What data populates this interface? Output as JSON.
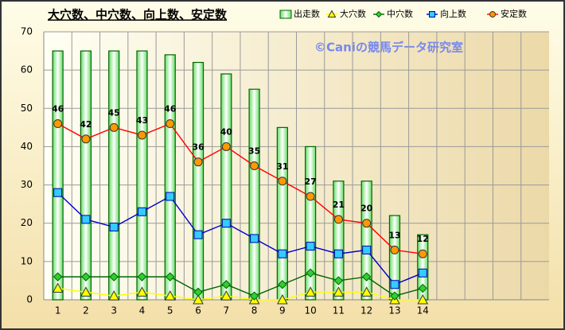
{
  "chart_data": {
    "type": "combo",
    "title": "大穴数、中穴数、向上数、安定数",
    "watermark": "©Caniの競馬データ研究室",
    "categories": [
      1,
      2,
      3,
      4,
      5,
      6,
      7,
      8,
      9,
      10,
      11,
      12,
      13,
      14,
      null,
      null,
      null,
      null
    ],
    "ylim": [
      0,
      70
    ],
    "yticks": [
      0,
      10,
      20,
      30,
      40,
      50,
      60,
      70
    ],
    "grid": true,
    "series": [
      {
        "name": "出走数",
        "type": "bar",
        "color": "#006600",
        "values": [
          65,
          65,
          65,
          65,
          64,
          62,
          59,
          55,
          45,
          40,
          31,
          31,
          22,
          17,
          null,
          null,
          null,
          null
        ]
      },
      {
        "name": "大穴数",
        "type": "line",
        "marker": "triangle",
        "marker_color": "#ffff00",
        "color": "#ffff00",
        "values": [
          3,
          2,
          1,
          2,
          1,
          0,
          1,
          0,
          0,
          2,
          2,
          2,
          0,
          0,
          null,
          null,
          null,
          null
        ]
      },
      {
        "name": "中穴数",
        "type": "line",
        "marker": "diamond",
        "marker_color": "#33cc33",
        "color": "#006600",
        "values": [
          6,
          6,
          6,
          6,
          6,
          2,
          4,
          1,
          4,
          7,
          5,
          6,
          1,
          3,
          null,
          null,
          null,
          null
        ]
      },
      {
        "name": "向上数",
        "type": "line",
        "marker": "square",
        "marker_color": "#33ccff",
        "color": "#0000cc",
        "values": [
          28,
          21,
          19,
          23,
          27,
          17,
          20,
          16,
          12,
          14,
          12,
          13,
          4,
          7,
          null,
          null,
          null,
          null
        ]
      },
      {
        "name": "安定数",
        "type": "line",
        "marker": "circle",
        "marker_color": "#ff9900",
        "color": "#ff0000",
        "labels": true,
        "values": [
          46,
          42,
          45,
          43,
          46,
          36,
          40,
          35,
          31,
          27,
          21,
          20,
          13,
          12,
          null,
          null,
          null,
          null
        ]
      }
    ]
  }
}
